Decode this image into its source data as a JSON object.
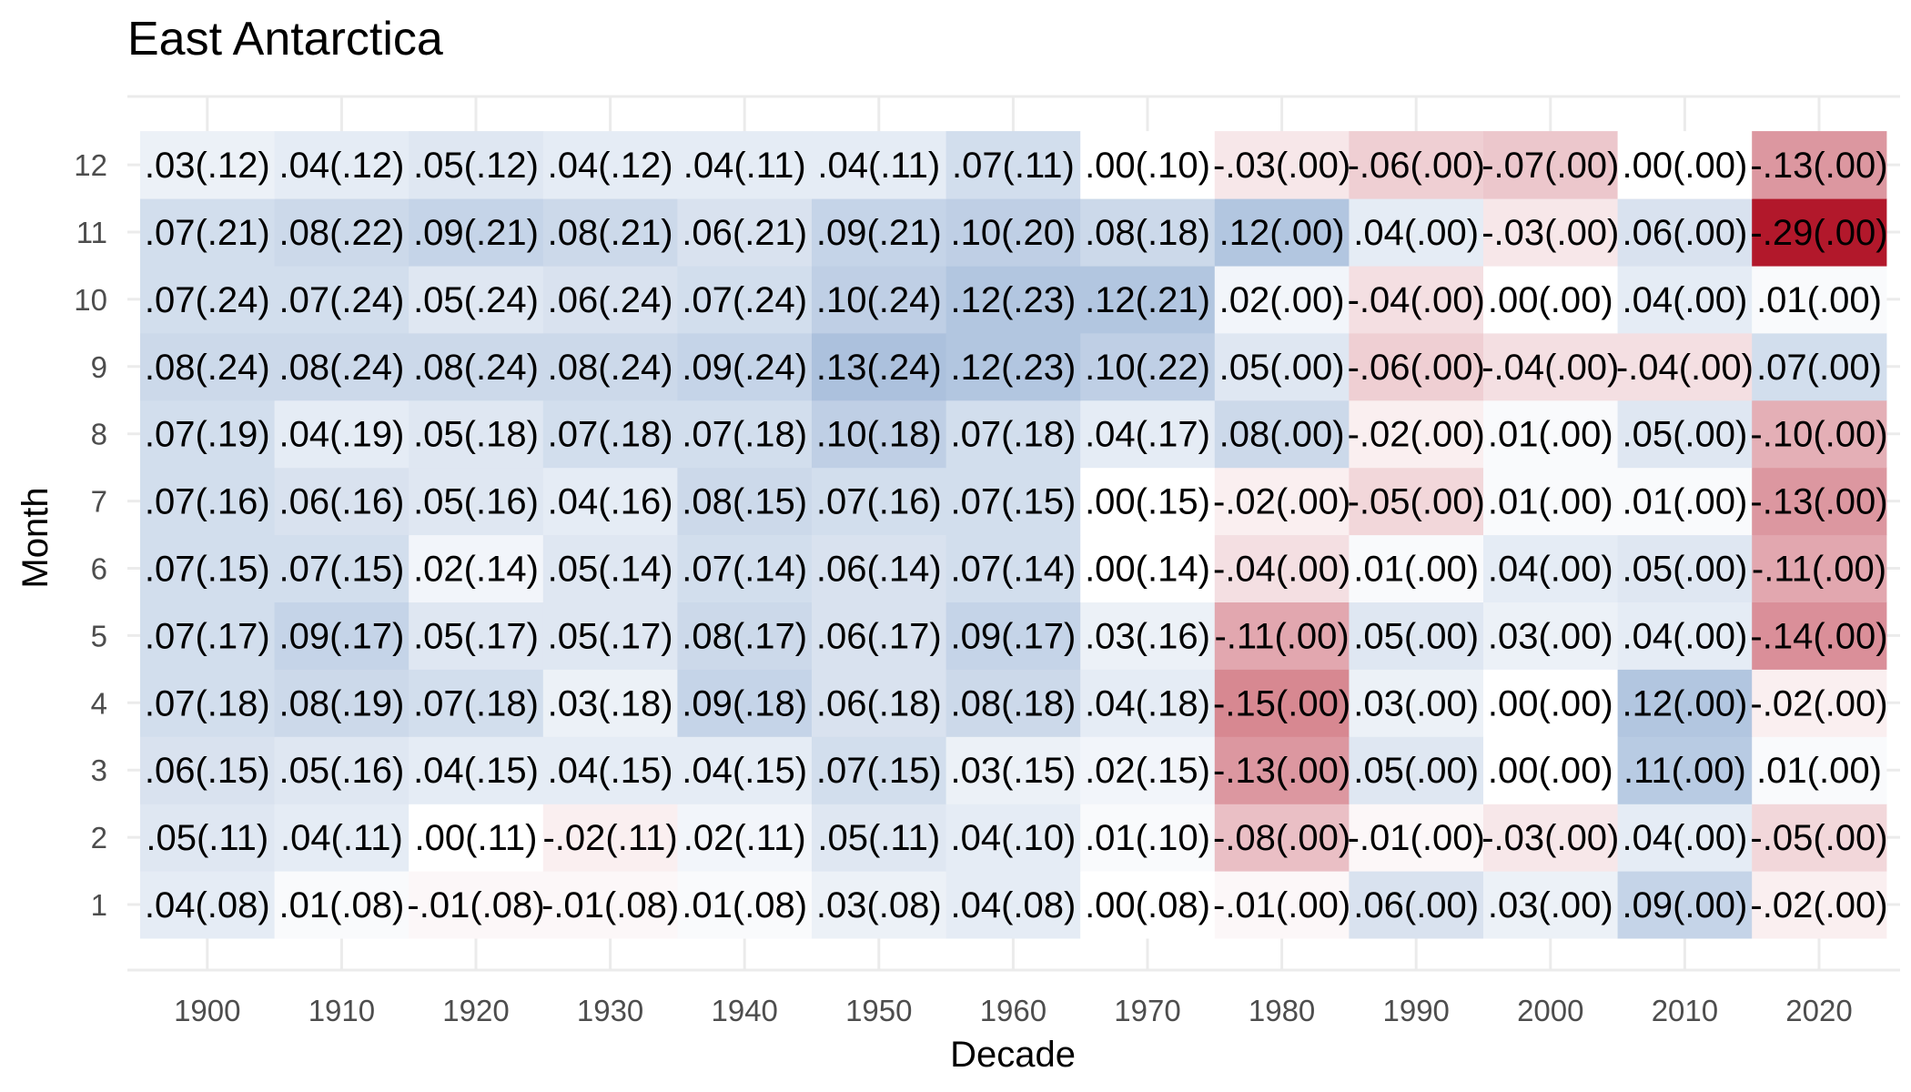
{
  "chart_data": {
    "type": "heatmap",
    "title": "East Antarctica",
    "xlabel": "Decade",
    "ylabel": "Month",
    "x": [
      "1900",
      "1910",
      "1920",
      "1930",
      "1940",
      "1950",
      "1960",
      "1970",
      "1980",
      "1990",
      "2000",
      "2010",
      "2020"
    ],
    "y": [
      "1",
      "2",
      "3",
      "4",
      "5",
      "6",
      "7",
      "8",
      "9",
      "10",
      "11",
      "12"
    ],
    "values": [
      [
        0.04,
        0.01,
        -0.01,
        -0.01,
        0.01,
        0.03,
        0.04,
        0.0,
        -0.01,
        0.06,
        0.03,
        0.09,
        -0.02
      ],
      [
        0.05,
        0.04,
        0.0,
        -0.02,
        0.02,
        0.05,
        0.04,
        0.01,
        -0.08,
        -0.01,
        -0.03,
        0.04,
        -0.05
      ],
      [
        0.06,
        0.05,
        0.04,
        0.04,
        0.04,
        0.07,
        0.03,
        0.02,
        -0.13,
        0.05,
        0.0,
        0.11,
        0.01
      ],
      [
        0.07,
        0.08,
        0.07,
        0.03,
        0.09,
        0.06,
        0.08,
        0.04,
        -0.15,
        0.03,
        0.0,
        0.12,
        -0.02
      ],
      [
        0.07,
        0.09,
        0.05,
        0.05,
        0.08,
        0.06,
        0.09,
        0.03,
        -0.11,
        0.05,
        0.03,
        0.04,
        -0.14
      ],
      [
        0.07,
        0.07,
        0.02,
        0.05,
        0.07,
        0.06,
        0.07,
        0.0,
        -0.04,
        0.01,
        0.04,
        0.05,
        -0.11
      ],
      [
        0.07,
        0.06,
        0.05,
        0.04,
        0.08,
        0.07,
        0.07,
        0.0,
        -0.02,
        -0.05,
        0.01,
        0.01,
        -0.13
      ],
      [
        0.07,
        0.04,
        0.05,
        0.07,
        0.07,
        0.1,
        0.07,
        0.04,
        0.08,
        -0.02,
        0.01,
        0.05,
        -0.1
      ],
      [
        0.08,
        0.08,
        0.08,
        0.08,
        0.09,
        0.13,
        0.12,
        0.1,
        0.05,
        -0.06,
        -0.04,
        -0.04,
        0.07
      ],
      [
        0.07,
        0.07,
        0.05,
        0.06,
        0.07,
        0.1,
        0.12,
        0.12,
        0.02,
        -0.04,
        0.0,
        0.04,
        0.01
      ],
      [
        0.07,
        0.08,
        0.09,
        0.08,
        0.06,
        0.09,
        0.1,
        0.08,
        0.12,
        0.04,
        -0.03,
        0.06,
        -0.29
      ],
      [
        0.03,
        0.04,
        0.05,
        0.04,
        0.04,
        0.04,
        0.07,
        0.0,
        -0.03,
        -0.06,
        -0.07,
        0.0,
        -0.13
      ]
    ],
    "labels": [
      [
        ".04(.08)",
        ".01(.08)",
        "-.01(.08)",
        "-.01(.08)",
        ".01(.08)",
        ".03(.08)",
        ".04(.08)",
        ".00(.08)",
        "-.01(.00)",
        ".06(.00)",
        ".03(.00)",
        ".09(.00)",
        "-.02(.00)"
      ],
      [
        ".05(.11)",
        ".04(.11)",
        ".00(.11)",
        "-.02(.11)",
        ".02(.11)",
        ".05(.11)",
        ".04(.10)",
        ".01(.10)",
        "-.08(.00)",
        "-.01(.00)",
        "-.03(.00)",
        ".04(.00)",
        "-.05(.00)"
      ],
      [
        ".06(.15)",
        ".05(.16)",
        ".04(.15)",
        ".04(.15)",
        ".04(.15)",
        ".07(.15)",
        ".03(.15)",
        ".02(.15)",
        "-.13(.00)",
        ".05(.00)",
        ".00(.00)",
        ".11(.00)",
        ".01(.00)"
      ],
      [
        ".07(.18)",
        ".08(.19)",
        ".07(.18)",
        ".03(.18)",
        ".09(.18)",
        ".06(.18)",
        ".08(.18)",
        ".04(.18)",
        "-.15(.00)",
        ".03(.00)",
        ".00(.00)",
        ".12(.00)",
        "-.02(.00)"
      ],
      [
        ".07(.17)",
        ".09(.17)",
        ".05(.17)",
        ".05(.17)",
        ".08(.17)",
        ".06(.17)",
        ".09(.17)",
        ".03(.16)",
        "-.11(.00)",
        ".05(.00)",
        ".03(.00)",
        ".04(.00)",
        "-.14(.00)"
      ],
      [
        ".07(.15)",
        ".07(.15)",
        ".02(.14)",
        ".05(.14)",
        ".07(.14)",
        ".06(.14)",
        ".07(.14)",
        ".00(.14)",
        "-.04(.00)",
        ".01(.00)",
        ".04(.00)",
        ".05(.00)",
        "-.11(.00)"
      ],
      [
        ".07(.16)",
        ".06(.16)",
        ".05(.16)",
        ".04(.16)",
        ".08(.15)",
        ".07(.16)",
        ".07(.15)",
        ".00(.15)",
        "-.02(.00)",
        "-.05(.00)",
        ".01(.00)",
        ".01(.00)",
        "-.13(.00)"
      ],
      [
        ".07(.19)",
        ".04(.19)",
        ".05(.18)",
        ".07(.18)",
        ".07(.18)",
        ".10(.18)",
        ".07(.18)",
        ".04(.17)",
        ".08(.00)",
        "-.02(.00)",
        ".01(.00)",
        ".05(.00)",
        "-.10(.00)"
      ],
      [
        ".08(.24)",
        ".08(.24)",
        ".08(.24)",
        ".08(.24)",
        ".09(.24)",
        ".13(.24)",
        ".12(.23)",
        ".10(.22)",
        ".05(.00)",
        "-.06(.00)",
        "-.04(.00)",
        "-.04(.00)",
        ".07(.00)"
      ],
      [
        ".07(.24)",
        ".07(.24)",
        ".05(.24)",
        ".06(.24)",
        ".07(.24)",
        ".10(.24)",
        ".12(.23)",
        ".12(.21)",
        ".02(.00)",
        "-.04(.00)",
        ".00(.00)",
        ".04(.00)",
        ".01(.00)"
      ],
      [
        ".07(.21)",
        ".08(.22)",
        ".09(.21)",
        ".08(.21)",
        ".06(.21)",
        ".09(.21)",
        ".10(.20)",
        ".08(.18)",
        ".12(.00)",
        ".04(.00)",
        "-.03(.00)",
        ".06(.00)",
        "-.29(.00)"
      ],
      [
        ".03(.12)",
        ".04(.12)",
        ".05(.12)",
        ".04(.12)",
        ".04(.11)",
        ".04(.11)",
        ".07(.11)",
        ".00(.10)",
        "-.03(.00)",
        "-.06(.00)",
        "-.07(.00)",
        ".00(.00)",
        "-.13(.00)"
      ]
    ],
    "color_scale": {
      "type": "diverging",
      "low_color": "#b2182b",
      "mid_color": "#ffffff",
      "high_color": "#4575b4",
      "midpoint": 0,
      "negative_limit": -0.29,
      "positive_limit": 0.29
    },
    "grid": true,
    "legend": "none"
  }
}
